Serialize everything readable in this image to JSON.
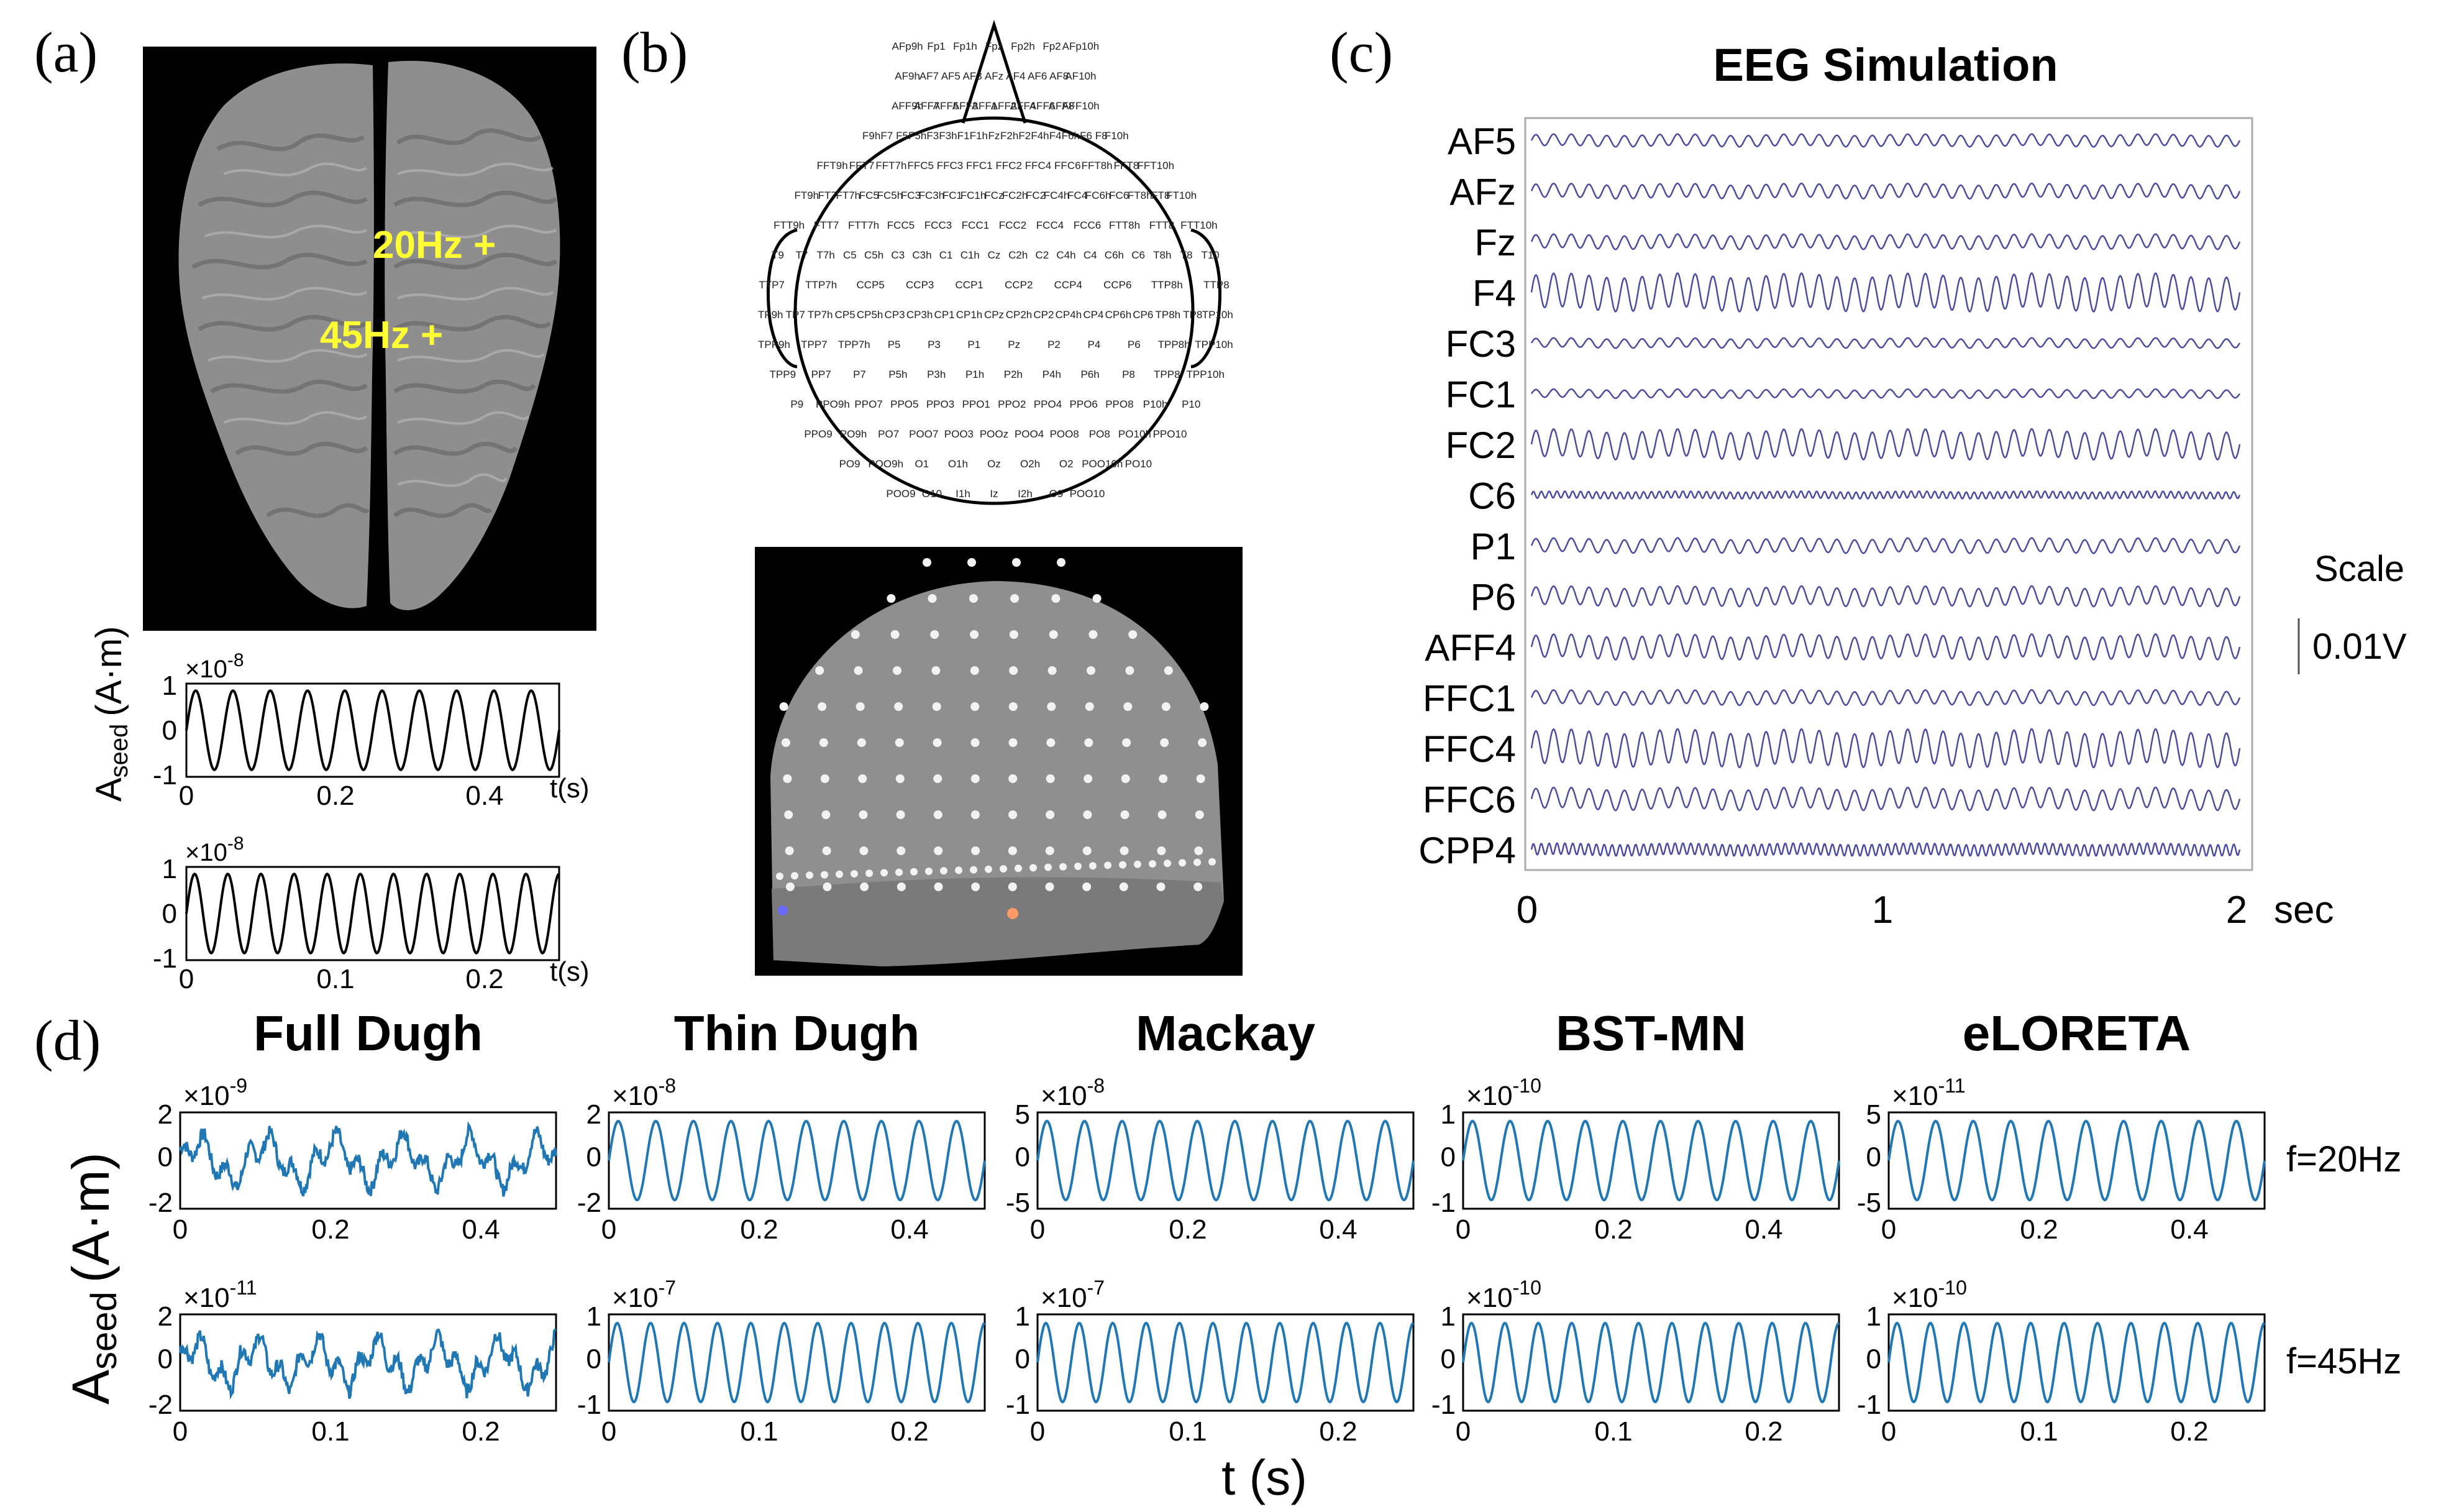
{
  "colors": {
    "eeg_trace": "#4b4ba0",
    "recon_trace": "#1f77b4",
    "seed_trace": "#000000",
    "brain_bg": "#000000",
    "marker": "#ffff33"
  },
  "panel_a": {
    "label": "(a)",
    "markers": [
      "20Hz +",
      "45Hz +"
    ],
    "ylabel_main": "A",
    "ylabel_sub": "seed",
    "ylabel_unit": "(A·m)",
    "plots": [
      {
        "exp": "×10",
        "exp_power": "-8",
        "yticks": [
          "1",
          "0",
          "-1"
        ],
        "xticks": [
          "0",
          "0.2",
          "0.4"
        ],
        "xlabel": "t(s)",
        "freq_hz": 20,
        "duration_s": 0.5
      },
      {
        "exp": "×10",
        "exp_power": "-8",
        "yticks": [
          "1",
          "0",
          "-1"
        ],
        "xticks": [
          "0",
          "0.1",
          "0.2"
        ],
        "xlabel": "t(s)",
        "freq_hz": 45,
        "duration_s": 0.25
      }
    ]
  },
  "panel_b": {
    "label": "(b)",
    "electrodes_rows": [
      [
        "AFp9h",
        "Fp1",
        "Fp1h",
        "Fpz",
        "Fp2h",
        "Fp2",
        "AFp10h"
      ],
      [
        "AF9h",
        "AF7",
        "AF5",
        "AF3",
        "AFz",
        "AF4",
        "AF6",
        "AF8",
        "AF10h"
      ],
      [
        "AFF9h",
        "AFF7",
        "AFF5",
        "AFF3",
        "AFF1",
        "AFF2",
        "AFF4",
        "AFF6",
        "AFF8",
        "AFF10h"
      ],
      [
        "F9h",
        "F7",
        "F5",
        "F5h",
        "F3",
        "F3h",
        "F1",
        "F1h",
        "Fz",
        "F2h",
        "F2",
        "F4h",
        "F4",
        "F6h",
        "F6",
        "F8",
        "F10h"
      ],
      [
        "FFT9h",
        "FFT7",
        "FFT7h",
        "FFC5",
        "FFC3",
        "FFC1",
        "FFC2",
        "FFC4",
        "FFC6",
        "FFT8h",
        "FFT8",
        "FFT10h"
      ],
      [
        "FT9h",
        "FT7",
        "FT7h",
        "FC5",
        "FC5h",
        "FC3",
        "FC3h",
        "FC1",
        "FC1h",
        "FCz",
        "FC2h",
        "FC2",
        "FC4h",
        "FC4",
        "FC6h",
        "FC6",
        "FT8h",
        "FT8",
        "FT10h"
      ],
      [
        "FTT9h",
        "FTT7",
        "FTT7h",
        "FCC5",
        "FCC3",
        "FCC1",
        "FCC2",
        "FCC4",
        "FCC6",
        "FTT8h",
        "FTT8",
        "FTT10h"
      ],
      [
        "T9",
        "T7",
        "T7h",
        "C5",
        "C5h",
        "C3",
        "C3h",
        "C1",
        "C1h",
        "Cz",
        "C2h",
        "C2",
        "C4h",
        "C4",
        "C6h",
        "C6",
        "T8h",
        "T8",
        "T10"
      ],
      [
        "TTP7",
        "TTP7h",
        "CCP5",
        "CCP3",
        "CCP1",
        "CCP2",
        "CCP4",
        "CCP6",
        "TTP8h",
        "TTP8"
      ],
      [
        "TP9h",
        "TP7",
        "TP7h",
        "CP5",
        "CP5h",
        "CP3",
        "CP3h",
        "CP1",
        "CP1h",
        "CPz",
        "CP2h",
        "CP2",
        "CP4h",
        "CP4",
        "CP6h",
        "CP6",
        "TP8h",
        "TP8",
        "TP10h"
      ],
      [
        "TPP9h",
        "TPP7",
        "TPP7h",
        "P5",
        "P3",
        "P1",
        "Pz",
        "P2",
        "P4",
        "P6",
        "TPP8h",
        "TPP10h"
      ],
      [
        "TPP9",
        "PP7",
        "P7",
        "P5h",
        "P3h",
        "P1h",
        "P2h",
        "P4h",
        "P6h",
        "P8",
        "TPP8",
        "TPP10h"
      ],
      [
        "P9",
        "PPO9h",
        "PPO7",
        "PPO5",
        "PPO3",
        "PPO1",
        "PPO2",
        "PPO4",
        "PPO6",
        "PPO8",
        "P10h",
        "P10"
      ],
      [
        "PPO9",
        "PO9h",
        "PO7",
        "POO7",
        "POO3",
        "POOz",
        "POO4",
        "POO8",
        "PO8",
        "PO10h",
        "PPO10"
      ],
      [
        "PO9",
        "POO9h",
        "O1",
        "O1h",
        "Oz",
        "O2h",
        "O2",
        "POO10h",
        "PO10"
      ],
      [
        "POO9",
        "O10",
        "I1h",
        "Iz",
        "I2h",
        "O9",
        "POO10"
      ]
    ]
  },
  "panel_c": {
    "label": "(c)",
    "title": "EEG Simulation",
    "channels": [
      {
        "name": "AF5",
        "amp": 0.25,
        "freq": 20
      },
      {
        "name": "AFz",
        "amp": 0.3,
        "freq": 20
      },
      {
        "name": "Fz",
        "amp": 0.3,
        "freq": 20
      },
      {
        "name": "F4",
        "amp": 0.75,
        "freq": 20
      },
      {
        "name": "FC3",
        "amp": 0.2,
        "freq": 20
      },
      {
        "name": "FC1",
        "amp": 0.18,
        "freq": 20
      },
      {
        "name": "FC2",
        "amp": 0.6,
        "freq": 20
      },
      {
        "name": "C6",
        "amp": 0.15,
        "freq": 45
      },
      {
        "name": "P1",
        "amp": 0.3,
        "freq": 20
      },
      {
        "name": "P6",
        "amp": 0.4,
        "freq": 20
      },
      {
        "name": "AFF4",
        "amp": 0.5,
        "freq": 20
      },
      {
        "name": "FFC1",
        "amp": 0.3,
        "freq": 20
      },
      {
        "name": "FFC4",
        "amp": 0.75,
        "freq": 20
      },
      {
        "name": "FFC6",
        "amp": 0.45,
        "freq": 20
      },
      {
        "name": "CPP4",
        "amp": 0.25,
        "freq": 45
      }
    ],
    "xticks": [
      "0",
      "1",
      "2"
    ],
    "x_unit": "sec",
    "duration_s": 2,
    "scale_label": "Scale",
    "scale_value": "0.01V"
  },
  "panel_d": {
    "label": "(d)",
    "ylabel_main": "A",
    "ylabel_sub": "seed",
    "ylabel_unit": "(A·m)",
    "xlabel": "t (s)",
    "row_labels": [
      "f=20Hz",
      "f=45Hz"
    ],
    "methods": [
      {
        "title": "Full Dugh",
        "row1": {
          "exp": "×10",
          "exp_power": "-9",
          "yticks": [
            "2",
            "0",
            "-2"
          ],
          "noisy": true
        },
        "row2": {
          "exp": "×10",
          "exp_power": "-11",
          "yticks": [
            "2",
            "0",
            "-2"
          ],
          "noisy": true
        }
      },
      {
        "title": "Thin Dugh",
        "row1": {
          "exp": "×10",
          "exp_power": "-8",
          "yticks": [
            "2",
            "0",
            "-2"
          ],
          "noisy": false
        },
        "row2": {
          "exp": "×10",
          "exp_power": "-7",
          "yticks": [
            "1",
            "0",
            "-1"
          ],
          "noisy": false
        }
      },
      {
        "title": "Mackay",
        "row1": {
          "exp": "×10",
          "exp_power": "-8",
          "yticks": [
            "5",
            "0",
            "-5"
          ],
          "noisy": false
        },
        "row2": {
          "exp": "×10",
          "exp_power": "-7",
          "yticks": [
            "1",
            "0",
            "-1"
          ],
          "noisy": false
        }
      },
      {
        "title": "BST-MN",
        "row1": {
          "exp": "×10",
          "exp_power": "-10",
          "yticks": [
            "1",
            "0",
            "-1"
          ],
          "noisy": false
        },
        "row2": {
          "exp": "×10",
          "exp_power": "-10",
          "yticks": [
            "1",
            "0",
            "-1"
          ],
          "noisy": false
        }
      },
      {
        "title": "eLORETA",
        "row1": {
          "exp": "×10",
          "exp_power": "-11",
          "yticks": [
            "5",
            "0",
            "-5"
          ],
          "noisy": false
        },
        "row2": {
          "exp": "×10",
          "exp_power": "-10",
          "yticks": [
            "1",
            "0",
            "-1"
          ],
          "noisy": false
        }
      }
    ],
    "row1_xticks": [
      "0",
      "0.2",
      "0.4"
    ],
    "row2_xticks": [
      "0",
      "0.1",
      "0.2"
    ]
  }
}
